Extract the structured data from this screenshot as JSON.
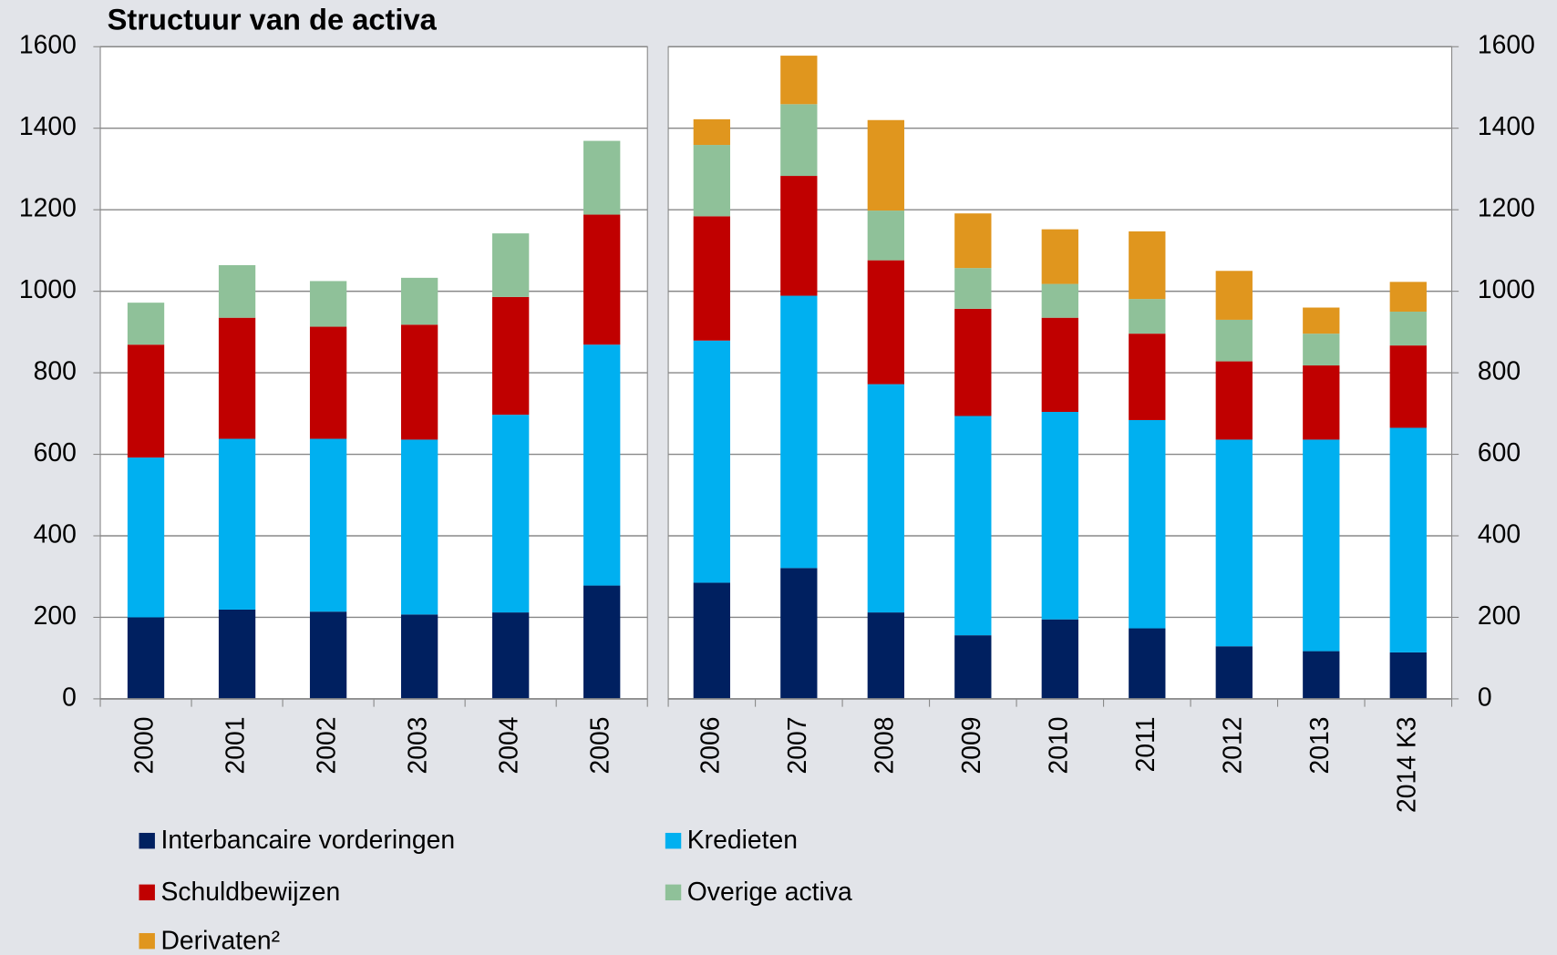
{
  "chart_data": {
    "type": "bar",
    "stacked": true,
    "title": "Structuur van de activa",
    "categories": [
      "2000",
      "2001",
      "2002",
      "2003",
      "2004",
      "2005",
      "2006",
      "2007",
      "2008",
      "2009",
      "2010",
      "2011",
      "2012",
      "2013",
      "2014 K3"
    ],
    "series": [
      {
        "name": "Interbancaire vorderingen",
        "color": "#002060",
        "values": [
          200,
          219,
          214,
          207,
          212,
          278,
          285,
          321,
          212,
          156,
          195,
          173,
          129,
          117,
          114
        ]
      },
      {
        "name": "Kredieten",
        "color": "#00b0f0",
        "values": [
          392,
          419,
          424,
          429,
          485,
          591,
          594,
          668,
          560,
          538,
          509,
          511,
          507,
          519,
          551
        ]
      },
      {
        "name": "Schuldbewijzen",
        "color": "#c00000",
        "values": [
          277,
          297,
          275,
          282,
          289,
          319,
          305,
          294,
          304,
          263,
          231,
          212,
          192,
          182,
          202
        ]
      },
      {
        "name": "Overige activa",
        "color": "#8fc199",
        "values": [
          103,
          129,
          112,
          115,
          156,
          181,
          175,
          176,
          122,
          100,
          83,
          85,
          102,
          78,
          83
        ]
      },
      {
        "name": "Derivaten²",
        "color": "#e0961e",
        "values": [
          null,
          null,
          null,
          null,
          null,
          null,
          63,
          119,
          222,
          134,
          134,
          166,
          120,
          64,
          73
        ]
      }
    ],
    "ylim": [
      0,
      1600
    ],
    "yticks": [
      0,
      200,
      400,
      600,
      800,
      1000,
      1200,
      1400,
      1600
    ],
    "grid": true
  }
}
